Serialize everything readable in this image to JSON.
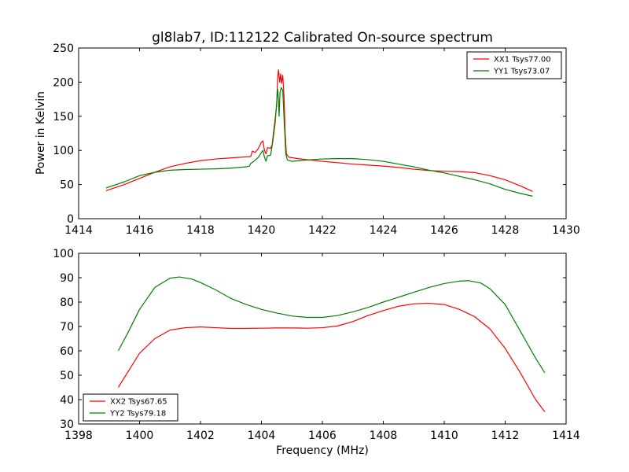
{
  "chart_data": [
    {
      "type": "line",
      "title": "gl8lab7, ID:112122 Calibrated On-source spectrum",
      "xlabel": "",
      "ylabel": "Power in Kelvin",
      "xlim": [
        1414,
        1430
      ],
      "ylim": [
        0,
        250
      ],
      "xticks": [
        1414,
        1416,
        1418,
        1420,
        1422,
        1424,
        1426,
        1428,
        1430
      ],
      "yticks": [
        0,
        50,
        100,
        150,
        200,
        250
      ],
      "grid": false,
      "legend_position": "top-right",
      "series": [
        {
          "name": "XX1 Tsys77.00",
          "color": "#ff0000",
          "points": [
            [
              1414.9,
              41
            ],
            [
              1415.5,
              50
            ],
            [
              1416,
              59
            ],
            [
              1416.5,
              68
            ],
            [
              1417,
              76
            ],
            [
              1417.5,
              81
            ],
            [
              1418,
              85
            ],
            [
              1418.5,
              87.5
            ],
            [
              1419,
              89
            ],
            [
              1419.5,
              90.5
            ],
            [
              1419.65,
              91
            ],
            [
              1419.7,
              99
            ],
            [
              1419.8,
              97
            ],
            [
              1419.9,
              103
            ],
            [
              1420.0,
              112
            ],
            [
              1420.05,
              114
            ],
            [
              1420.1,
              100
            ],
            [
              1420.15,
              95
            ],
            [
              1420.2,
              104
            ],
            [
              1420.3,
              103
            ],
            [
              1420.35,
              108
            ],
            [
              1420.42,
              135
            ],
            [
              1420.5,
              165
            ],
            [
              1420.53,
              205
            ],
            [
              1420.56,
              218
            ],
            [
              1420.6,
              200
            ],
            [
              1420.63,
              212
            ],
            [
              1420.66,
              198
            ],
            [
              1420.7,
              210
            ],
            [
              1420.74,
              180
            ],
            [
              1420.78,
              125
            ],
            [
              1420.82,
              95
            ],
            [
              1420.9,
              90
            ],
            [
              1421.2,
              88
            ],
            [
              1421.6,
              86
            ],
            [
              1422,
              84
            ],
            [
              1422.5,
              82
            ],
            [
              1423,
              80
            ],
            [
              1423.5,
              78.5
            ],
            [
              1424,
              77
            ],
            [
              1424.5,
              75
            ],
            [
              1425,
              72.5
            ],
            [
              1425.5,
              70.5
            ],
            [
              1426,
              69.5
            ],
            [
              1426.5,
              69
            ],
            [
              1427,
              67.5
            ],
            [
              1427.5,
              63
            ],
            [
              1428,
              57
            ],
            [
              1428.5,
              48
            ],
            [
              1428.9,
              40
            ]
          ]
        },
        {
          "name": "YY1 Tsys73.07",
          "color": "#008000",
          "points": [
            [
              1414.9,
              45
            ],
            [
              1415.5,
              54
            ],
            [
              1416,
              63
            ],
            [
              1416.5,
              68
            ],
            [
              1417,
              71
            ],
            [
              1417.5,
              72
            ],
            [
              1418,
              72.5
            ],
            [
              1418.5,
              73
            ],
            [
              1419,
              74
            ],
            [
              1419.5,
              76
            ],
            [
              1419.6,
              77
            ],
            [
              1419.65,
              81
            ],
            [
              1419.75,
              84
            ],
            [
              1419.9,
              90
            ],
            [
              1420.0,
              97
            ],
            [
              1420.05,
              100
            ],
            [
              1420.1,
              90
            ],
            [
              1420.15,
              84
            ],
            [
              1420.2,
              92
            ],
            [
              1420.3,
              93
            ],
            [
              1420.38,
              115
            ],
            [
              1420.45,
              140
            ],
            [
              1420.5,
              170
            ],
            [
              1420.53,
              190
            ],
            [
              1420.56,
              175
            ],
            [
              1420.58,
              150
            ],
            [
              1420.61,
              185
            ],
            [
              1420.65,
              192
            ],
            [
              1420.7,
              188
            ],
            [
              1420.75,
              140
            ],
            [
              1420.8,
              95
            ],
            [
              1420.85,
              86
            ],
            [
              1421,
              84
            ],
            [
              1421.5,
              86
            ],
            [
              1422,
              87.5
            ],
            [
              1422.5,
              88
            ],
            [
              1423,
              88
            ],
            [
              1423.5,
              86.5
            ],
            [
              1424,
              84
            ],
            [
              1424.5,
              80
            ],
            [
              1425,
              76
            ],
            [
              1425.5,
              71
            ],
            [
              1426,
              67
            ],
            [
              1426.5,
              62
            ],
            [
              1427,
              57
            ],
            [
              1427.5,
              51
            ],
            [
              1428,
              43
            ],
            [
              1428.5,
              37
            ],
            [
              1428.9,
              33
            ]
          ]
        }
      ]
    },
    {
      "type": "line",
      "title": "",
      "xlabel": "Frequency (MHz)",
      "ylabel": "",
      "xlim": [
        1398,
        1414
      ],
      "ylim": [
        30,
        100
      ],
      "xticks": [
        1398,
        1400,
        1402,
        1404,
        1406,
        1408,
        1410,
        1412,
        1414
      ],
      "yticks": [
        30,
        40,
        50,
        60,
        70,
        80,
        90,
        100
      ],
      "grid": false,
      "legend_position": "bottom-left",
      "series": [
        {
          "name": "XX2 Tsys67.65",
          "color": "#ff0000",
          "points": [
            [
              1399.3,
              45
            ],
            [
              1399.6,
              51
            ],
            [
              1400,
              59
            ],
            [
              1400.5,
              65
            ],
            [
              1401,
              68.5
            ],
            [
              1401.5,
              69.5
            ],
            [
              1402,
              69.8
            ],
            [
              1402.5,
              69.5
            ],
            [
              1403,
              69.2
            ],
            [
              1403.5,
              69.2
            ],
            [
              1404,
              69.3
            ],
            [
              1404.5,
              69.4
            ],
            [
              1405,
              69.4
            ],
            [
              1405.5,
              69.3
            ],
            [
              1406,
              69.5
            ],
            [
              1406.5,
              70.2
            ],
            [
              1407,
              72
            ],
            [
              1407.5,
              74.5
            ],
            [
              1408,
              76.5
            ],
            [
              1408.5,
              78.3
            ],
            [
              1409,
              79.3
            ],
            [
              1409.5,
              79.5
            ],
            [
              1410,
              79
            ],
            [
              1410.5,
              77
            ],
            [
              1411,
              74
            ],
            [
              1411.5,
              69
            ],
            [
              1412,
              61
            ],
            [
              1412.5,
              51
            ],
            [
              1413,
              40
            ],
            [
              1413.3,
              35
            ]
          ]
        },
        {
          "name": "YY2 Tsys79.18",
          "color": "#008000",
          "points": [
            [
              1399.3,
              60
            ],
            [
              1399.6,
              67
            ],
            [
              1400,
              77
            ],
            [
              1400.5,
              86
            ],
            [
              1401,
              89.8
            ],
            [
              1401.3,
              90.3
            ],
            [
              1401.7,
              89.5
            ],
            [
              1402,
              88
            ],
            [
              1402.5,
              85
            ],
            [
              1403,
              81.5
            ],
            [
              1403.5,
              79
            ],
            [
              1404,
              77
            ],
            [
              1404.5,
              75.5
            ],
            [
              1405,
              74.3
            ],
            [
              1405.5,
              73.7
            ],
            [
              1406,
              73.7
            ],
            [
              1406.5,
              74.5
            ],
            [
              1407,
              76
            ],
            [
              1407.5,
              77.8
            ],
            [
              1408,
              80
            ],
            [
              1408.5,
              82
            ],
            [
              1409,
              84
            ],
            [
              1409.5,
              86
            ],
            [
              1410,
              87.6
            ],
            [
              1410.5,
              88.6
            ],
            [
              1410.8,
              88.8
            ],
            [
              1411.2,
              87.8
            ],
            [
              1411.5,
              85.5
            ],
            [
              1412,
              79
            ],
            [
              1412.5,
              68
            ],
            [
              1413,
              57
            ],
            [
              1413.3,
              51
            ]
          ]
        }
      ]
    }
  ]
}
